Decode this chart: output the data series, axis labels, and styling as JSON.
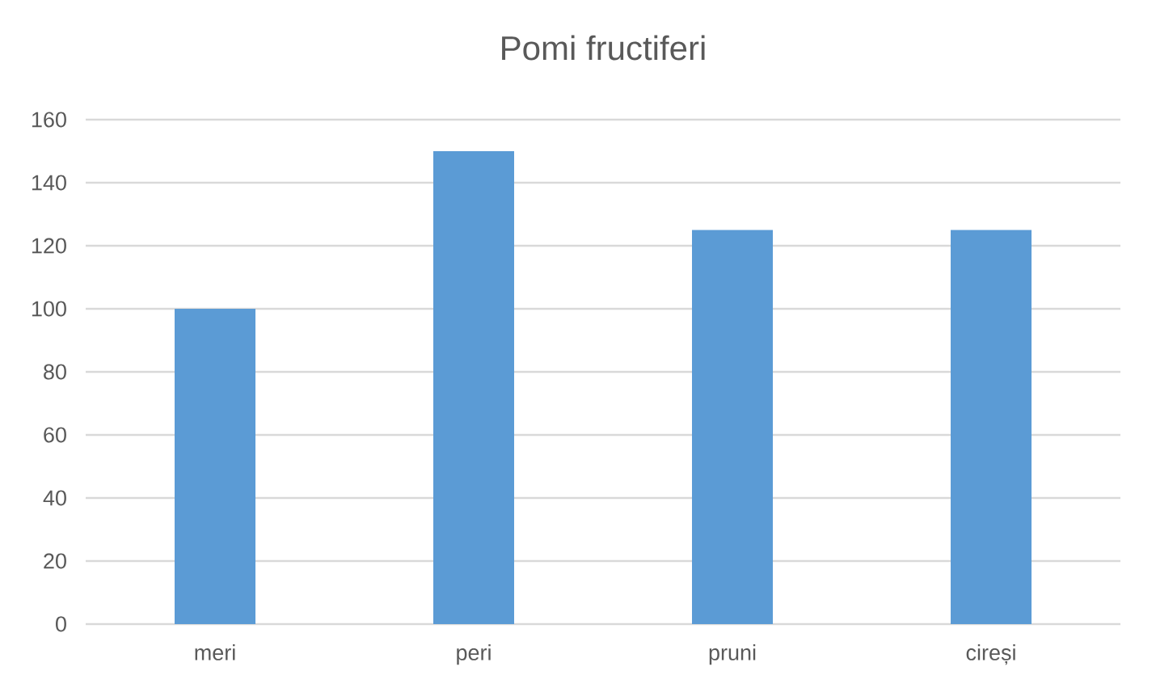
{
  "chart_data": {
    "type": "bar",
    "title": "Pomi fructiferi",
    "categories": [
      "meri",
      "peri",
      "pruni",
      "cireși"
    ],
    "values": [
      100,
      150,
      125,
      125
    ],
    "color": "#5b9bd5",
    "ylim": [
      0,
      160
    ],
    "yticks": [
      0,
      20,
      40,
      60,
      80,
      100,
      120,
      140,
      160
    ],
    "grid": "y"
  }
}
